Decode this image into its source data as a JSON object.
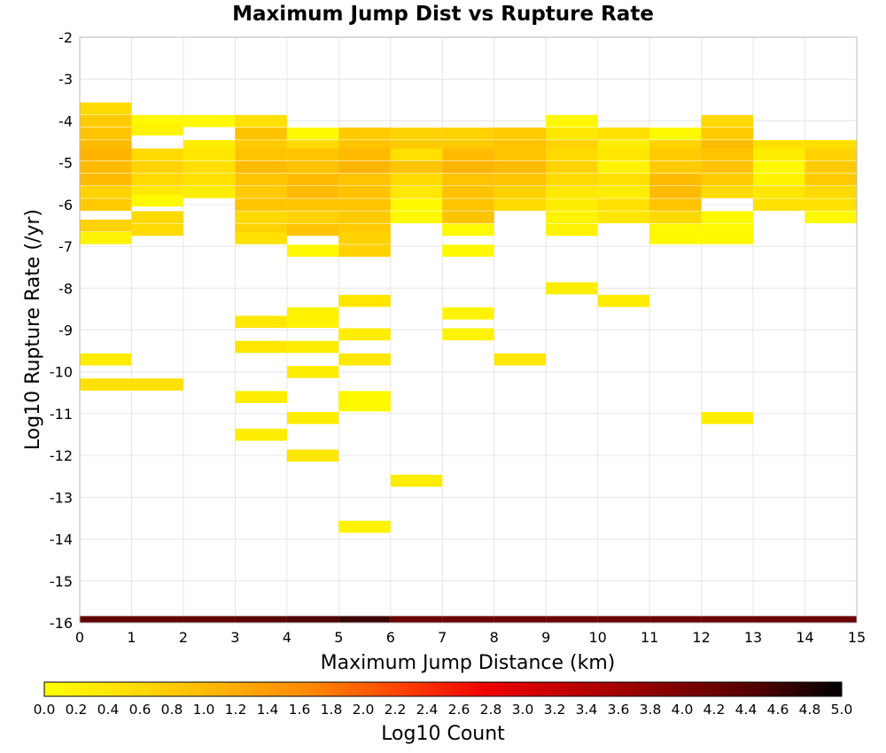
{
  "chart_data": {
    "type": "heatmap",
    "title": "Maximum Jump Dist vs Rupture Rate",
    "xlabel": "Maximum Jump Distance (km)",
    "ylabel": "Log10 Rupture Rate (/yr)",
    "xlim": [
      0,
      15
    ],
    "ylim": [
      -16,
      -2
    ],
    "x_ticks": [
      0,
      1,
      2,
      3,
      4,
      5,
      6,
      7,
      8,
      9,
      10,
      11,
      12,
      13,
      14,
      15
    ],
    "y_ticks": [
      -2,
      -3,
      -4,
      -5,
      -6,
      -7,
      -8,
      -9,
      -10,
      -11,
      -12,
      -13,
      -14,
      -15,
      -16
    ],
    "grid": true,
    "x_bin_width": 1,
    "y_bin_height": 0.28,
    "colorbar": {
      "label": "Log10 Count",
      "range": [
        0,
        5
      ],
      "ticks": [
        "0.0",
        "0.2",
        "0.4",
        "0.6",
        "0.8",
        "1.0",
        "1.2",
        "1.4",
        "1.6",
        "1.8",
        "2.0",
        "2.2",
        "2.4",
        "2.6",
        "2.8",
        "3.0",
        "3.2",
        "3.4",
        "3.6",
        "3.8",
        "4.0",
        "4.2",
        "4.4",
        "4.6",
        "4.8",
        "5.0"
      ],
      "colors": [
        "#ffff00",
        "#ffdd00",
        "#ffb300",
        "#ff8800",
        "#ff4400",
        "#ee0000",
        "#bb0000",
        "#880000",
        "#550000",
        "#000000"
      ]
    },
    "cells": [
      [
        0,
        -3.7,
        0.6
      ],
      [
        0,
        -4.0,
        0.8
      ],
      [
        0,
        -4.3,
        0.9
      ],
      [
        0,
        -4.6,
        1.0
      ],
      [
        0,
        -4.8,
        1.1
      ],
      [
        0,
        -5.1,
        1.0
      ],
      [
        0,
        -5.4,
        1.0
      ],
      [
        0,
        -5.7,
        0.7
      ],
      [
        0,
        -6.0,
        0.8
      ],
      [
        0,
        -6.5,
        0.7
      ],
      [
        0,
        -6.8,
        0.2
      ],
      [
        0,
        -9.7,
        0.3
      ],
      [
        0,
        -10.3,
        0.5
      ],
      [
        1,
        -4.0,
        0.1
      ],
      [
        1,
        -4.2,
        0.2
      ],
      [
        1,
        -4.8,
        0.6
      ],
      [
        1,
        -5.1,
        0.7
      ],
      [
        1,
        -5.4,
        0.6
      ],
      [
        1,
        -5.7,
        0.4
      ],
      [
        1,
        -5.9,
        0.1
      ],
      [
        1,
        -6.3,
        0.6
      ],
      [
        1,
        -6.6,
        0.6
      ],
      [
        1,
        -10.3,
        0.5
      ],
      [
        2,
        -4.0,
        0.1
      ],
      [
        2,
        -4.6,
        0.3
      ],
      [
        2,
        -4.8,
        0.4
      ],
      [
        2,
        -5.1,
        0.5
      ],
      [
        2,
        -5.4,
        0.5
      ],
      [
        2,
        -5.7,
        0.3
      ],
      [
        3,
        -4.0,
        0.5
      ],
      [
        3,
        -4.3,
        0.9
      ],
      [
        3,
        -4.6,
        0.8
      ],
      [
        3,
        -4.8,
        0.9
      ],
      [
        3,
        -5.1,
        1.0
      ],
      [
        3,
        -5.4,
        0.9
      ],
      [
        3,
        -5.7,
        0.8
      ],
      [
        3,
        -6.0,
        0.9
      ],
      [
        3,
        -6.3,
        0.6
      ],
      [
        3,
        -6.6,
        0.7
      ],
      [
        3,
        -6.8,
        0.5
      ],
      [
        3,
        -8.8,
        0.4
      ],
      [
        3,
        -9.4,
        0.4
      ],
      [
        3,
        -10.6,
        0.3
      ],
      [
        3,
        -11.5,
        0.3
      ],
      [
        4,
        -4.3,
        0.1
      ],
      [
        4,
        -4.6,
        0.6
      ],
      [
        4,
        -4.8,
        0.9
      ],
      [
        4,
        -5.1,
        0.9
      ],
      [
        4,
        -5.4,
        1.0
      ],
      [
        4,
        -5.7,
        1.0
      ],
      [
        4,
        -6.0,
        0.9
      ],
      [
        4,
        -6.3,
        0.7
      ],
      [
        4,
        -6.6,
        0.9
      ],
      [
        4,
        -7.1,
        0.1
      ],
      [
        4,
        -8.6,
        0.2
      ],
      [
        4,
        -8.8,
        0.2
      ],
      [
        4,
        -9.4,
        0.3
      ],
      [
        4,
        -10.0,
        0.3
      ],
      [
        4,
        -11.1,
        0.3
      ],
      [
        4,
        -12.0,
        0.4
      ],
      [
        5,
        -4.3,
        0.8
      ],
      [
        5,
        -4.6,
        0.9
      ],
      [
        5,
        -4.8,
        1.0
      ],
      [
        5,
        -5.1,
        1.1
      ],
      [
        5,
        -5.4,
        0.9
      ],
      [
        5,
        -5.7,
        0.9
      ],
      [
        5,
        -6.0,
        0.9
      ],
      [
        5,
        -6.3,
        0.8
      ],
      [
        5,
        -6.6,
        0.8
      ],
      [
        5,
        -6.8,
        0.7
      ],
      [
        5,
        -7.1,
        0.7
      ],
      [
        5,
        -8.3,
        0.4
      ],
      [
        5,
        -9.1,
        0.3
      ],
      [
        5,
        -9.7,
        0.4
      ],
      [
        5,
        -10.6,
        0.1
      ],
      [
        5,
        -10.8,
        0.1
      ],
      [
        5,
        -13.7,
        0.2
      ],
      [
        6,
        -4.3,
        0.7
      ],
      [
        6,
        -4.6,
        0.8
      ],
      [
        6,
        -4.8,
        0.5
      ],
      [
        6,
        -5.1,
        0.9
      ],
      [
        6,
        -5.4,
        0.6
      ],
      [
        6,
        -5.7,
        0.4
      ],
      [
        6,
        -6.0,
        0.1
      ],
      [
        6,
        -6.3,
        0.1
      ],
      [
        6,
        -12.6,
        0.3
      ],
      [
        7,
        -4.3,
        0.7
      ],
      [
        7,
        -4.6,
        0.8
      ],
      [
        7,
        -4.8,
        1.0
      ],
      [
        7,
        -5.1,
        1.1
      ],
      [
        7,
        -5.4,
        0.9
      ],
      [
        7,
        -5.7,
        0.9
      ],
      [
        7,
        -6.0,
        0.9
      ],
      [
        7,
        -6.3,
        0.9
      ],
      [
        7,
        -6.6,
        0.1
      ],
      [
        7,
        -7.1,
        0.1
      ],
      [
        7,
        -8.6,
        0.2
      ],
      [
        7,
        -9.1,
        0.2
      ],
      [
        8,
        -4.3,
        0.8
      ],
      [
        8,
        -4.6,
        0.9
      ],
      [
        8,
        -4.8,
        0.9
      ],
      [
        8,
        -5.1,
        1.0
      ],
      [
        8,
        -5.4,
        0.9
      ],
      [
        8,
        -5.7,
        0.7
      ],
      [
        8,
        -6.0,
        0.6
      ],
      [
        8,
        -9.7,
        0.4
      ],
      [
        9,
        -4.0,
        0.1
      ],
      [
        9,
        -4.3,
        0.4
      ],
      [
        9,
        -4.6,
        0.7
      ],
      [
        9,
        -4.8,
        0.6
      ],
      [
        9,
        -5.1,
        0.7
      ],
      [
        9,
        -5.4,
        0.6
      ],
      [
        9,
        -5.7,
        0.4
      ],
      [
        9,
        -6.0,
        0.3
      ],
      [
        9,
        -6.3,
        0.2
      ],
      [
        9,
        -6.6,
        0.2
      ],
      [
        9,
        -8.0,
        0.3
      ],
      [
        10,
        -4.3,
        0.5
      ],
      [
        10,
        -4.6,
        0.3
      ],
      [
        10,
        -4.8,
        0.4
      ],
      [
        10,
        -5.1,
        0.2
      ],
      [
        10,
        -5.4,
        0.5
      ],
      [
        10,
        -5.7,
        0.3
      ],
      [
        10,
        -6.0,
        0.5
      ],
      [
        10,
        -6.3,
        0.4
      ],
      [
        10,
        -8.3,
        0.3
      ],
      [
        11,
        -4.3,
        0.1
      ],
      [
        11,
        -4.6,
        0.7
      ],
      [
        11,
        -4.8,
        0.8
      ],
      [
        11,
        -5.1,
        0.8
      ],
      [
        11,
        -5.4,
        1.0
      ],
      [
        11,
        -5.7,
        1.0
      ],
      [
        11,
        -6.0,
        0.9
      ],
      [
        11,
        -6.3,
        0.6
      ],
      [
        11,
        -6.6,
        0.1
      ],
      [
        11,
        -6.8,
        0.1
      ],
      [
        12,
        -4.0,
        0.6
      ],
      [
        12,
        -4.3,
        0.8
      ],
      [
        12,
        -4.6,
        1.0
      ],
      [
        12,
        -4.8,
        0.9
      ],
      [
        12,
        -5.1,
        0.9
      ],
      [
        12,
        -5.4,
        0.8
      ],
      [
        12,
        -5.7,
        0.6
      ],
      [
        12,
        -6.3,
        0.1
      ],
      [
        12,
        -6.6,
        0.1
      ],
      [
        12,
        -6.8,
        0.1
      ],
      [
        12,
        -11.1,
        0.3
      ],
      [
        13,
        -4.6,
        0.5
      ],
      [
        13,
        -4.8,
        0.3
      ],
      [
        13,
        -5.1,
        0.1
      ],
      [
        13,
        -5.4,
        0.2
      ],
      [
        13,
        -5.7,
        0.4
      ],
      [
        13,
        -6.0,
        0.5
      ],
      [
        14,
        -4.6,
        0.5
      ],
      [
        14,
        -4.8,
        0.7
      ],
      [
        14,
        -5.1,
        0.8
      ],
      [
        14,
        -5.4,
        0.8
      ],
      [
        14,
        -5.7,
        0.6
      ],
      [
        14,
        -6.0,
        0.5
      ],
      [
        14,
        -6.3,
        0.1
      ]
    ],
    "bottom_row": {
      "y": -16,
      "values": [
        4.3,
        4.3,
        4.3,
        4.4,
        4.5,
        4.6,
        4.2,
        4.2,
        4.2,
        4.2,
        4.2,
        4.2,
        4.2,
        4.2,
        4.2
      ]
    }
  }
}
